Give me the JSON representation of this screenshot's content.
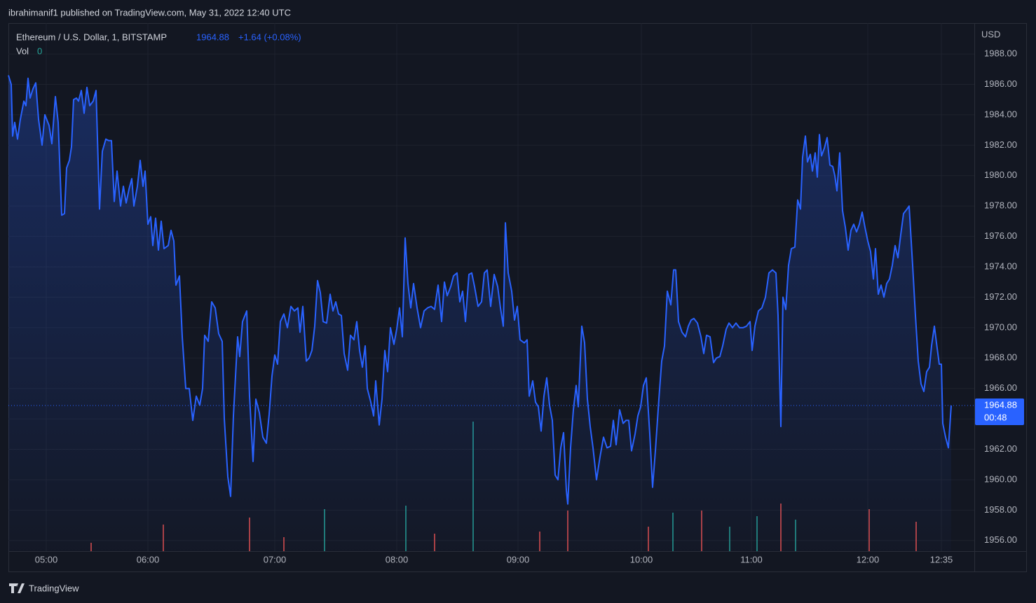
{
  "header": "ibrahimanif1 published on TradingView.com, May 31, 2022 12:40 UTC",
  "footer": "TradingView",
  "chart_data": {
    "type": "line",
    "symbol": "Ethereum / U.S. Dollar, 1, BITSTAMP",
    "change": "+1.64 (+0.08%)",
    "volume_label": "Vol",
    "volume_last": 0,
    "currency": "USD",
    "countdown": "00:48",
    "color": "#2962ff",
    "grid": true,
    "xlim": [
      0,
      1378
    ],
    "xticks": [
      {
        "value": 54,
        "label": "05:00"
      },
      {
        "value": 199,
        "label": "06:00"
      },
      {
        "value": 380,
        "label": "07:00"
      },
      {
        "value": 554,
        "label": "08:00"
      },
      {
        "value": 727,
        "label": "09:00"
      },
      {
        "value": 903,
        "label": "10:00"
      },
      {
        "value": 1060,
        "label": "11:00"
      },
      {
        "value": 1226,
        "label": "12:00"
      },
      {
        "value": 1331,
        "label": "12:35"
      }
    ],
    "ylim": [
      1955.3,
      1990.03
    ],
    "yticks": [
      {
        "value": 1956,
        "label": "1956.00"
      },
      {
        "value": 1958,
        "label": "1958.00"
      },
      {
        "value": 1960,
        "label": "1960.00"
      },
      {
        "value": 1962,
        "label": "1962.00"
      },
      {
        "value": 1964,
        "label": "1964.00"
      },
      {
        "value": 1966,
        "label": "1966.00"
      },
      {
        "value": 1968,
        "label": "1968.00"
      },
      {
        "value": 1970,
        "label": "1970.00"
      },
      {
        "value": 1972,
        "label": "1972.00"
      },
      {
        "value": 1974,
        "label": "1974.00"
      },
      {
        "value": 1976,
        "label": "1976.00"
      },
      {
        "value": 1978,
        "label": "1978.00"
      },
      {
        "value": 1980,
        "label": "1980.00"
      },
      {
        "value": 1982,
        "label": "1982.00"
      },
      {
        "value": 1984,
        "label": "1984.00"
      },
      {
        "value": 1986,
        "label": "1986.00"
      },
      {
        "value": 1988,
        "label": "1988.00"
      }
    ],
    "x": [
      0,
      4,
      6,
      9,
      13,
      17,
      22,
      25,
      28,
      31,
      35,
      39,
      43,
      48,
      52,
      58,
      62,
      67,
      71,
      76,
      80,
      83,
      87,
      90,
      93,
      97,
      100,
      104,
      108,
      112,
      116,
      121,
      125,
      130,
      134,
      139,
      143,
      147,
      151,
      155,
      160,
      164,
      168,
      172,
      176,
      179,
      184,
      188,
      192,
      195,
      199,
      203,
      206,
      210,
      214,
      218,
      222,
      228,
      232,
      236,
      239,
      244,
      248,
      253,
      258,
      263,
      268,
      273,
      277,
      280,
      285,
      290,
      295,
      300,
      305,
      308,
      313,
      317,
      321,
      327,
      330,
      334,
      340,
      344,
      349,
      353,
      358,
      363,
      368,
      372,
      376,
      380,
      384,
      388,
      393,
      398,
      403,
      408,
      413,
      416,
      420,
      425,
      429,
      433,
      437,
      441,
      445,
      449,
      454,
      459,
      463,
      467,
      471,
      475,
      479,
      484,
      488,
      493,
      497,
      501,
      505,
      509,
      512,
      517,
      521,
      524,
      529,
      533,
      537,
      541,
      545,
      550,
      554,
      558,
      562,
      566,
      570,
      574,
      578,
      583,
      588,
      593,
      598,
      603,
      608,
      613,
      618,
      622,
      626,
      631,
      635,
      640,
      644,
      648,
      652,
      657,
      661,
      665,
      670,
      675,
      679,
      683,
      688,
      693,
      698,
      702,
      706,
      709,
      713,
      718,
      722,
      726,
      730,
      736,
      740,
      743,
      748,
      752,
      756,
      760,
      764,
      768,
      772,
      776,
      780,
      784,
      788,
      792,
      796,
      798,
      802,
      806,
      810,
      813,
      818,
      822,
      826,
      830,
      834,
      839,
      844,
      849,
      854,
      859,
      863,
      867,
      872,
      877,
      881,
      885,
      889,
      894,
      898,
      902,
      906,
      910,
      915,
      919,
      923,
      928,
      932,
      936,
      940,
      945,
      949,
      952,
      956,
      961,
      966,
      970,
      974,
      978,
      983,
      988,
      992,
      996,
      1001,
      1006,
      1010,
      1015,
      1019,
      1024,
      1028,
      1033,
      1038,
      1043,
      1048,
      1053,
      1058,
      1061,
      1065,
      1070,
      1075,
      1080,
      1085,
      1090,
      1095,
      1098,
      1102,
      1105,
      1109,
      1113,
      1117,
      1122,
      1126,
      1130,
      1133,
      1137,
      1140,
      1144,
      1147,
      1151,
      1154,
      1157,
      1160,
      1164,
      1168,
      1172,
      1176,
      1179,
      1182,
      1186,
      1190,
      1194,
      1198,
      1202,
      1206,
      1210,
      1214,
      1218,
      1222,
      1226,
      1230,
      1234,
      1237,
      1241,
      1245,
      1249,
      1253,
      1257,
      1261,
      1265,
      1269,
      1273,
      1277,
      1282,
      1285,
      1290,
      1294,
      1298,
      1302,
      1306,
      1310,
      1314,
      1317,
      1321,
      1324,
      1328,
      1331,
      1333,
      1337,
      1341,
      1345
    ],
    "values": [
      1986.6,
      1986.0,
      1982.6,
      1983.5,
      1982.4,
      1983.7,
      1984.9,
      1984.6,
      1986.4,
      1985.1,
      1985.7,
      1986.1,
      1983.7,
      1982.0,
      1984.0,
      1983.3,
      1982.1,
      1985.2,
      1983.5,
      1977.4,
      1977.5,
      1980.5,
      1981.0,
      1981.9,
      1985.0,
      1985.1,
      1984.9,
      1985.6,
      1984.1,
      1985.8,
      1984.6,
      1984.9,
      1985.6,
      1977.8,
      1981.6,
      1982.4,
      1982.3,
      1982.3,
      1978.3,
      1980.3,
      1978.0,
      1979.3,
      1978.2,
      1979.1,
      1979.8,
      1978.0,
      1979.3,
      1981.0,
      1979.3,
      1980.3,
      1976.8,
      1977.3,
      1975.4,
      1977.2,
      1975.1,
      1977.0,
      1975.2,
      1975.4,
      1976.4,
      1975.7,
      1972.8,
      1973.4,
      1969.4,
      1966.0,
      1966.0,
      1963.9,
      1965.5,
      1964.9,
      1966.0,
      1969.5,
      1969.1,
      1971.7,
      1971.3,
      1969.6,
      1969.1,
      1964.0,
      1960.2,
      1958.9,
      1964.2,
      1969.4,
      1968.1,
      1970.4,
      1971.1,
      1965.5,
      1961.2,
      1965.3,
      1964.4,
      1962.8,
      1962.4,
      1964.3,
      1966.8,
      1968.2,
      1967.6,
      1970.4,
      1970.9,
      1970.0,
      1971.4,
      1971.1,
      1971.3,
      1969.7,
      1971.4,
      1967.8,
      1968.0,
      1968.5,
      1970.1,
      1973.1,
      1972.3,
      1970.4,
      1970.3,
      1972.2,
      1971.1,
      1971.7,
      1970.9,
      1970.8,
      1968.3,
      1967.2,
      1969.5,
      1969.2,
      1970.4,
      1968.5,
      1967.4,
      1968.8,
      1966.0,
      1965.1,
      1964.2,
      1966.5,
      1963.6,
      1965.3,
      1968.5,
      1967.1,
      1970.0,
      1968.9,
      1969.9,
      1971.3,
      1969.4,
      1975.9,
      1972.9,
      1971.3,
      1972.9,
      1971.3,
      1970.0,
      1971.1,
      1971.3,
      1971.4,
      1971.2,
      1972.8,
      1970.4,
      1973.0,
      1972.1,
      1972.7,
      1973.4,
      1973.6,
      1971.7,
      1972.4,
      1970.4,
      1973.5,
      1973.6,
      1972.7,
      1971.4,
      1971.7,
      1973.6,
      1973.8,
      1971.4,
      1973.5,
      1972.7,
      1971.3,
      1970.1,
      1976.9,
      1973.6,
      1972.4,
      1970.5,
      1971.4,
      1969.2,
      1969.0,
      1969.2,
      1965.5,
      1966.5,
      1965.1,
      1964.8,
      1963.2,
      1965.5,
      1966.7,
      1964.9,
      1963.9,
      1960.3,
      1960.0,
      1962.1,
      1963.1,
      1959.3,
      1958.4,
      1962.1,
      1964.6,
      1966.2,
      1964.8,
      1970.1,
      1969.0,
      1965.3,
      1963.5,
      1962.1,
      1960.0,
      1961.5,
      1962.8,
      1962.1,
      1962.2,
      1963.9,
      1962.3,
      1964.6,
      1963.7,
      1963.9,
      1963.9,
      1961.9,
      1963.0,
      1964.2,
      1964.8,
      1966.2,
      1966.7,
      1963.0,
      1959.5,
      1961.9,
      1965.3,
      1967.8,
      1968.8,
      1972.4,
      1971.5,
      1973.8,
      1973.8,
      1970.4,
      1969.7,
      1969.4,
      1970.1,
      1970.5,
      1970.6,
      1970.3,
      1969.4,
      1968.3,
      1969.5,
      1969.4,
      1967.7,
      1968.0,
      1968.1,
      1968.8,
      1969.9,
      1970.3,
      1970.0,
      1970.3,
      1970.0,
      1970.0,
      1970.1,
      1970.4,
      1968.5,
      1970.1,
      1971.1,
      1971.3,
      1972.0,
      1973.6,
      1973.8,
      1973.6,
      1970.8,
      1963.5,
      1972.0,
      1971.2,
      1974.1,
      1975.2,
      1975.3,
      1978.4,
      1977.8,
      1981.2,
      1982.6,
      1980.9,
      1981.4,
      1980.3,
      1981.5,
      1979.9,
      1982.7,
      1981.3,
      1981.8,
      1982.5,
      1980.7,
      1980.6,
      1980.0,
      1979.0,
      1981.5,
      1977.7,
      1976.6,
      1975.1,
      1976.4,
      1976.8,
      1976.3,
      1976.8,
      1977.6,
      1976.6,
      1975.7,
      1975.0,
      1973.2,
      1975.2,
      1972.2,
      1972.8,
      1972.0,
      1972.9,
      1973.2,
      1974.1,
      1975.4,
      1974.6,
      1976.1,
      1977.5,
      1977.8,
      1978.0,
      1974.1,
      1970.8,
      1967.8,
      1966.3,
      1965.8,
      1967.1,
      1967.4,
      1968.8,
      1970.1,
      1969.0,
      1967.6,
      1967.6,
      1963.7,
      1962.8,
      1962.1,
      1964.88
    ],
    "volume": {
      "vlim": [
        0,
        754
      ],
      "x": [
        118,
        221,
        344,
        393,
        451,
        567,
        608,
        663,
        758,
        798,
        913,
        948,
        989,
        1029,
        1068,
        1102,
        1123,
        1228,
        1295
      ],
      "values": [
        12,
        38,
        48,
        20,
        60,
        65,
        25,
        185,
        28,
        58,
        35,
        55,
        58,
        35,
        50,
        68,
        45,
        60,
        42
      ],
      "colors": [
        "#ef5350",
        "#ef5350",
        "#ef5350",
        "#ef5350",
        "#26a69a",
        "#26a69a",
        "#ef5350",
        "#26a69a",
        "#ef5350",
        "#ef5350",
        "#ef5350",
        "#26a69a",
        "#ef5350",
        "#26a69a",
        "#26a69a",
        "#ef5350",
        "#26a69a",
        "#ef5350",
        "#ef5350"
      ]
    }
  }
}
